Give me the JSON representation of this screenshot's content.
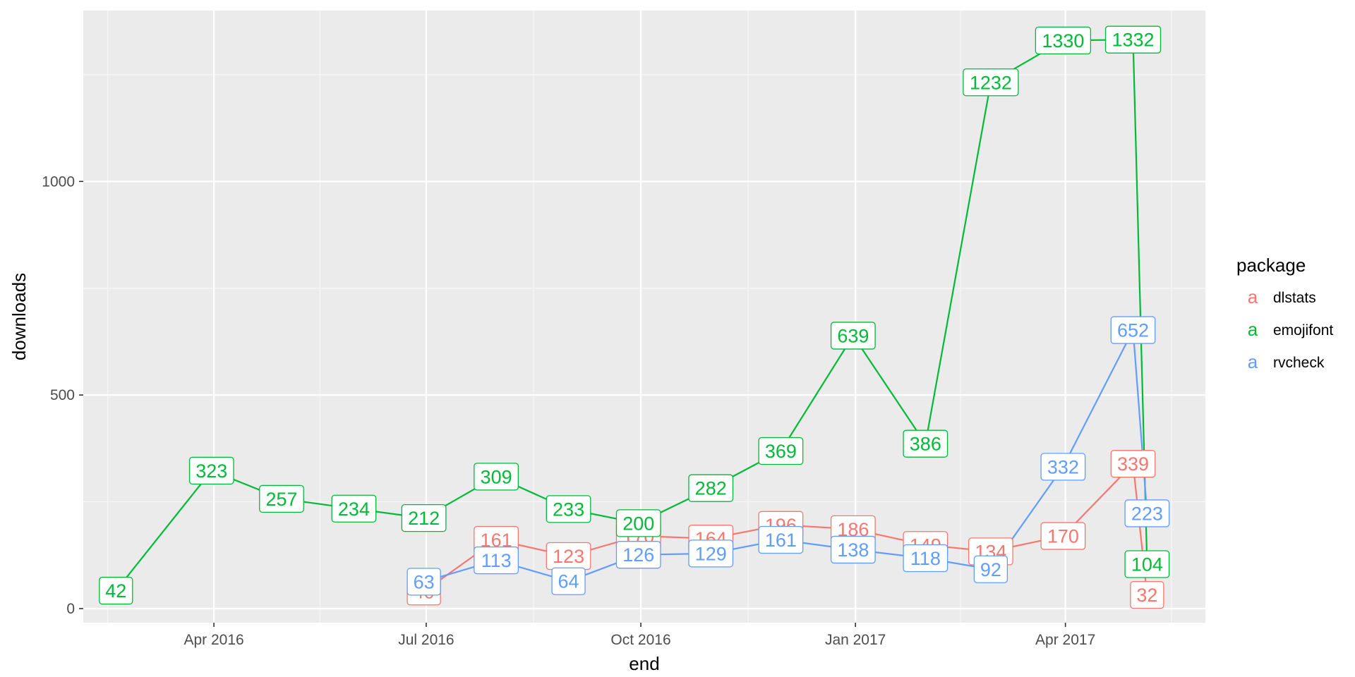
{
  "chart_data": {
    "type": "line",
    "xlabel": "end",
    "ylabel": "downloads",
    "x_ticks": [
      {
        "date": "2016-04-01",
        "label": "Apr 2016"
      },
      {
        "date": "2016-07-01",
        "label": "Jul 2016"
      },
      {
        "date": "2016-10-01",
        "label": "Oct 2016"
      },
      {
        "date": "2017-01-01",
        "label": "Jan 2017"
      },
      {
        "date": "2017-04-01",
        "label": "Apr 2017"
      }
    ],
    "xlim": [
      "2016-02-05",
      "2017-05-31"
    ],
    "y_ticks": [
      0,
      500,
      1000
    ],
    "ylim": [
      -33,
      1400
    ],
    "grid": true,
    "legend": {
      "title": "package",
      "position": "right",
      "key_glyph": "a"
    },
    "series": [
      {
        "name": "dlstats",
        "color": "#F8766D",
        "points": [
          {
            "x": "2016-06-30",
            "y": 40
          },
          {
            "x": "2016-07-31",
            "y": 161
          },
          {
            "x": "2016-08-31",
            "y": 123
          },
          {
            "x": "2016-09-30",
            "y": 170
          },
          {
            "x": "2016-10-31",
            "y": 164
          },
          {
            "x": "2016-11-30",
            "y": 196
          },
          {
            "x": "2016-12-31",
            "y": 186
          },
          {
            "x": "2017-01-31",
            "y": 149
          },
          {
            "x": "2017-02-28",
            "y": 134
          },
          {
            "x": "2017-03-31",
            "y": 170
          },
          {
            "x": "2017-04-30",
            "y": 339
          },
          {
            "x": "2017-05-06",
            "y": 32
          }
        ]
      },
      {
        "name": "emojifont",
        "color": "#00BA38",
        "points": [
          {
            "x": "2016-02-19",
            "y": 42
          },
          {
            "x": "2016-03-31",
            "y": 323
          },
          {
            "x": "2016-04-30",
            "y": 257
          },
          {
            "x": "2016-05-31",
            "y": 234
          },
          {
            "x": "2016-06-30",
            "y": 212
          },
          {
            "x": "2016-07-31",
            "y": 309
          },
          {
            "x": "2016-08-31",
            "y": 233
          },
          {
            "x": "2016-09-30",
            "y": 200
          },
          {
            "x": "2016-10-31",
            "y": 282
          },
          {
            "x": "2016-11-30",
            "y": 369
          },
          {
            "x": "2016-12-31",
            "y": 639
          },
          {
            "x": "2017-01-31",
            "y": 386
          },
          {
            "x": "2017-02-28",
            "y": 1232
          },
          {
            "x": "2017-03-31",
            "y": 1330
          },
          {
            "x": "2017-04-30",
            "y": 1332
          },
          {
            "x": "2017-05-06",
            "y": 104
          }
        ]
      },
      {
        "name": "rvcheck",
        "color": "#619CFF",
        "points": [
          {
            "x": "2016-06-30",
            "y": 63
          },
          {
            "x": "2016-07-31",
            "y": 113
          },
          {
            "x": "2016-08-31",
            "y": 64
          },
          {
            "x": "2016-09-30",
            "y": 126
          },
          {
            "x": "2016-10-31",
            "y": 129
          },
          {
            "x": "2016-11-30",
            "y": 161
          },
          {
            "x": "2016-12-31",
            "y": 138
          },
          {
            "x": "2017-01-31",
            "y": 118
          },
          {
            "x": "2017-02-28",
            "y": 92
          },
          {
            "x": "2017-03-31",
            "y": 332
          },
          {
            "x": "2017-04-30",
            "y": 652
          },
          {
            "x": "2017-05-06",
            "y": 223
          }
        ]
      }
    ]
  }
}
